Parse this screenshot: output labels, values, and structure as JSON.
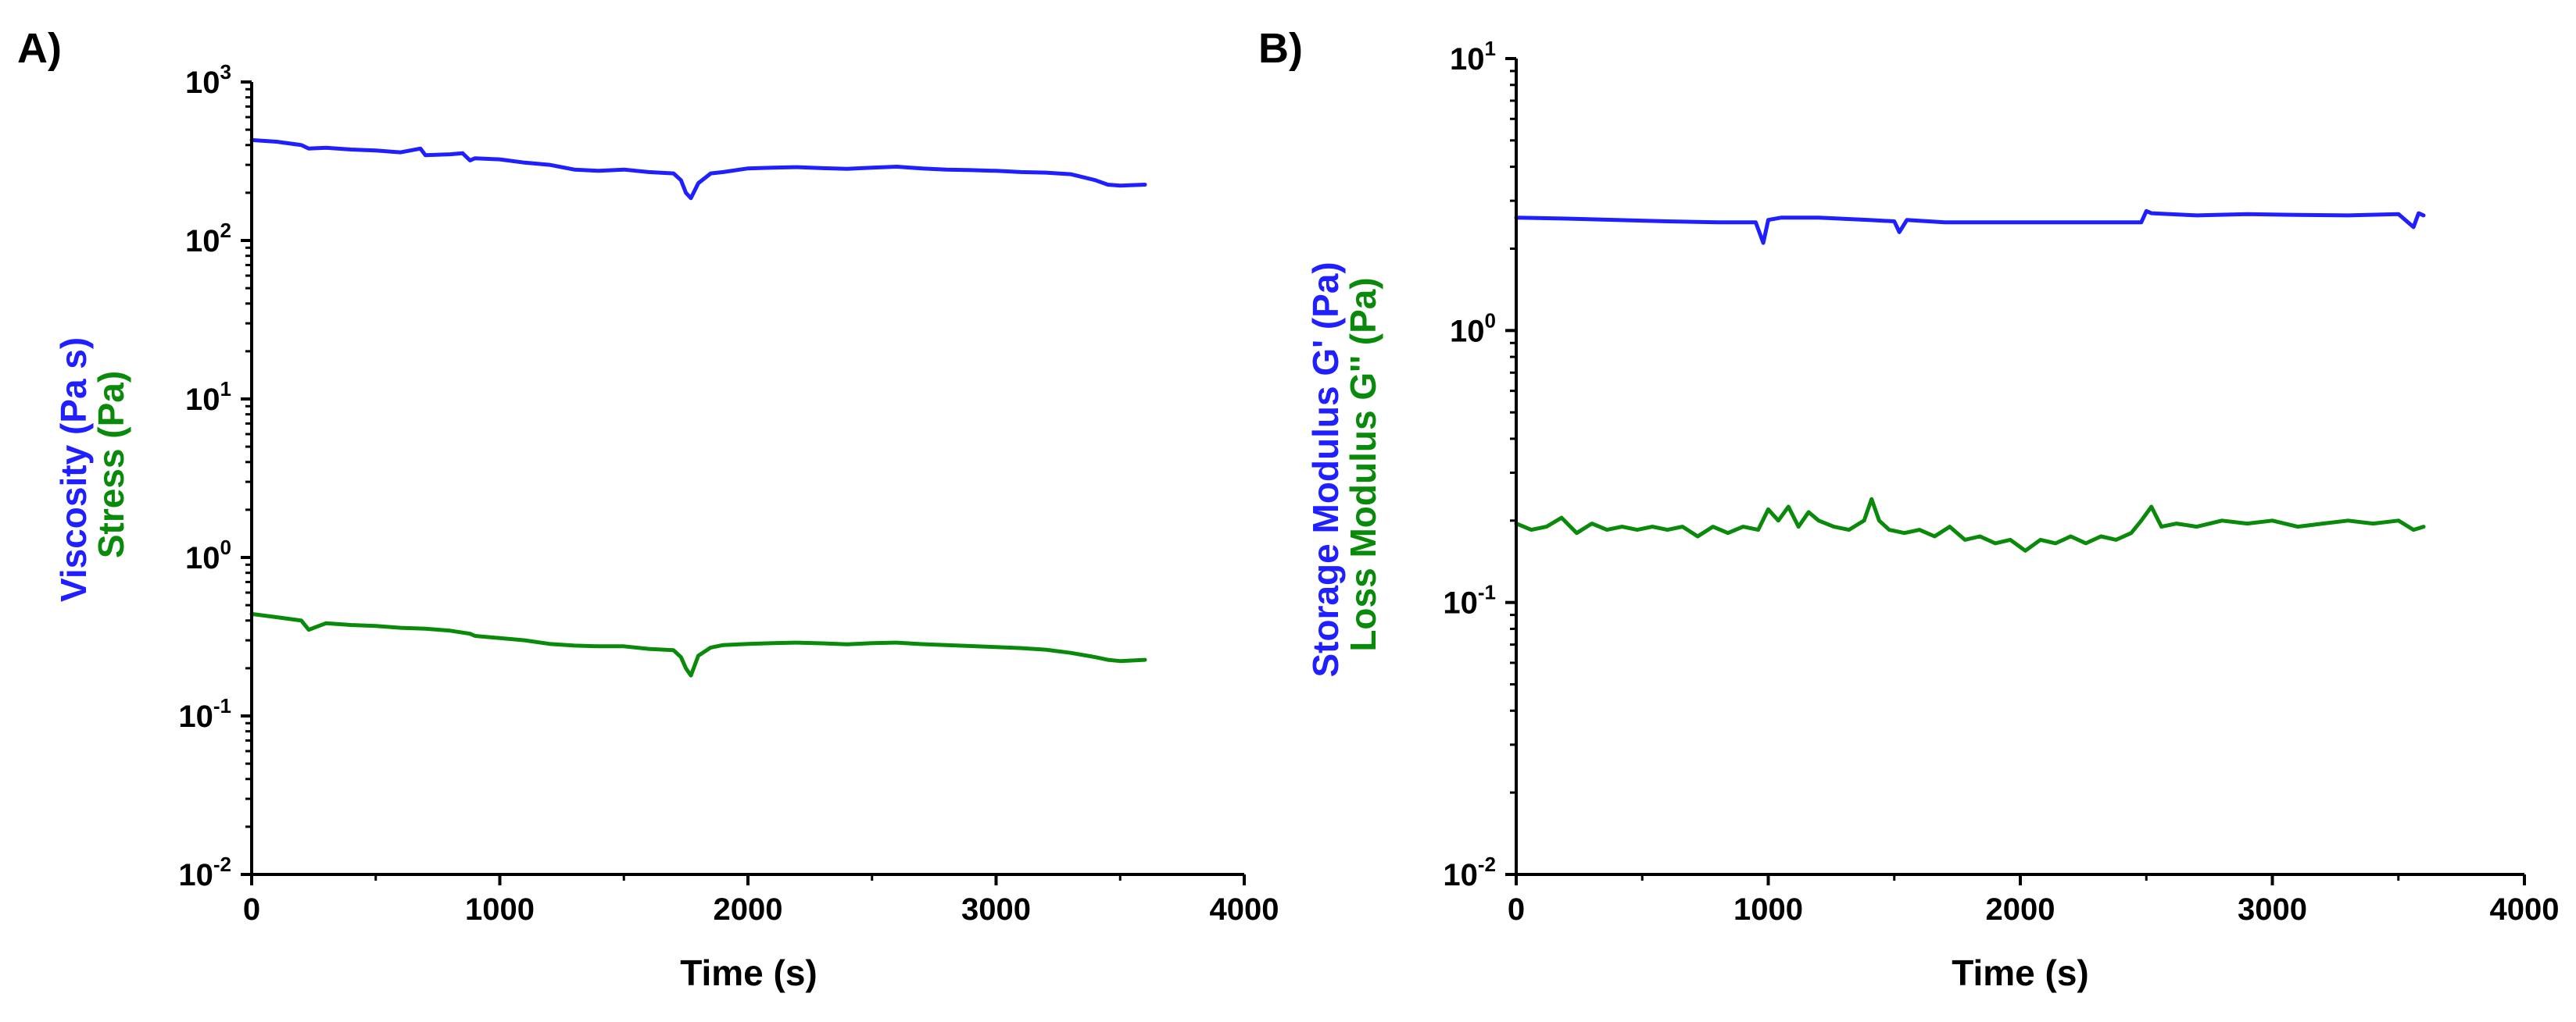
{
  "chart_data": [
    {
      "type": "line",
      "panel_label": "A)",
      "xlabel": "Time (s)",
      "ylabel_parts": [
        {
          "text": "Viscosity (Pa s)",
          "color": "#1f1fff"
        },
        {
          "text": "Stress (Pa)",
          "color": "#0a8a0a"
        }
      ],
      "xlim": [
        0,
        4000
      ],
      "x_ticks": [
        0,
        1000,
        2000,
        3000,
        4000
      ],
      "x_tick_labels": [
        "0",
        "1000",
        "2000",
        "3000",
        "4000"
      ],
      "y_scale": "log",
      "ylim": [
        0.01,
        1000
      ],
      "y_tick_labels": [
        {
          "base": "10",
          "exp": "3"
        },
        {
          "base": "10",
          "exp": "2"
        },
        {
          "base": "10",
          "exp": "1"
        },
        {
          "base": "10",
          "exp": "0"
        },
        {
          "base": "10",
          "exp": "-1"
        },
        {
          "base": "10",
          "exp": "-2"
        }
      ],
      "series": [
        {
          "name": "Viscosity",
          "color": "#1f1fff",
          "x": [
            0,
            100,
            200,
            230,
            300,
            400,
            500,
            600,
            680,
            700,
            800,
            850,
            880,
            900,
            1000,
            1100,
            1200,
            1300,
            1400,
            1500,
            1600,
            1700,
            1730,
            1750,
            1770,
            1800,
            1850,
            1900,
            2000,
            2100,
            2200,
            2300,
            2400,
            2500,
            2600,
            2700,
            2800,
            2900,
            3000,
            3100,
            3200,
            3300,
            3400,
            3450,
            3500,
            3600
          ],
          "values": [
            430,
            420,
            400,
            380,
            385,
            375,
            370,
            360,
            380,
            345,
            350,
            355,
            320,
            330,
            325,
            310,
            300,
            280,
            275,
            280,
            270,
            265,
            240,
            200,
            185,
            230,
            265,
            270,
            285,
            288,
            290,
            286,
            283,
            288,
            292,
            285,
            280,
            278,
            275,
            270,
            268,
            262,
            240,
            225,
            222,
            225
          ]
        },
        {
          "name": "Stress",
          "color": "#0a8a0a",
          "x": [
            0,
            100,
            200,
            230,
            300,
            400,
            500,
            600,
            700,
            800,
            880,
            900,
            1000,
            1100,
            1200,
            1300,
            1400,
            1500,
            1600,
            1700,
            1730,
            1750,
            1770,
            1800,
            1850,
            1900,
            2000,
            2100,
            2200,
            2300,
            2400,
            2500,
            2600,
            2700,
            2800,
            2900,
            3000,
            3100,
            3200,
            3300,
            3400,
            3450,
            3500,
            3600
          ],
          "values": [
            0.44,
            0.42,
            0.4,
            0.35,
            0.385,
            0.375,
            0.37,
            0.36,
            0.355,
            0.345,
            0.33,
            0.32,
            0.31,
            0.3,
            0.285,
            0.278,
            0.275,
            0.275,
            0.265,
            0.26,
            0.235,
            0.2,
            0.18,
            0.24,
            0.27,
            0.28,
            0.285,
            0.288,
            0.29,
            0.287,
            0.283,
            0.288,
            0.29,
            0.284,
            0.28,
            0.276,
            0.272,
            0.268,
            0.262,
            0.25,
            0.235,
            0.226,
            0.222,
            0.226
          ]
        }
      ]
    },
    {
      "type": "line",
      "panel_label": "B)",
      "xlabel": "Time (s)",
      "ylabel_parts": [
        {
          "text": "Storage Modulus G' (Pa)",
          "color": "#1f1fff"
        },
        {
          "text": "Loss Modulus G'' (Pa)",
          "color": "#0a8a0a"
        }
      ],
      "xlim": [
        0,
        4000
      ],
      "x_ticks": [
        0,
        1000,
        2000,
        3000,
        4000
      ],
      "x_tick_labels": [
        "0",
        "1000",
        "2000",
        "3000",
        "4000"
      ],
      "y_scale": "log",
      "ylim": [
        0.01,
        10
      ],
      "y_tick_labels": [
        {
          "base": "10",
          "exp": "1"
        },
        {
          "base": "10",
          "exp": "0"
        },
        {
          "base": "10",
          "exp": "-1"
        },
        {
          "base": "10",
          "exp": "-2"
        }
      ],
      "series": [
        {
          "name": "Storage Modulus G'",
          "color": "#1f1fff",
          "x": [
            0,
            200,
            400,
            600,
            800,
            950,
            980,
            1000,
            1050,
            1200,
            1400,
            1500,
            1520,
            1550,
            1700,
            1900,
            2100,
            2300,
            2480,
            2500,
            2520,
            2700,
            2900,
            3100,
            3300,
            3500,
            3560,
            3580,
            3600
          ],
          "values": [
            2.6,
            2.58,
            2.55,
            2.52,
            2.5,
            2.5,
            2.1,
            2.55,
            2.6,
            2.6,
            2.55,
            2.52,
            2.3,
            2.55,
            2.5,
            2.5,
            2.5,
            2.5,
            2.5,
            2.75,
            2.7,
            2.65,
            2.68,
            2.66,
            2.65,
            2.68,
            2.4,
            2.7,
            2.65
          ]
        },
        {
          "name": "Loss Modulus G''",
          "color": "#0a8a0a",
          "x": [
            0,
            60,
            120,
            180,
            240,
            300,
            360,
            420,
            480,
            540,
            600,
            660,
            720,
            780,
            840,
            900,
            960,
            1000,
            1040,
            1080,
            1120,
            1160,
            1200,
            1260,
            1320,
            1380,
            1410,
            1440,
            1480,
            1540,
            1600,
            1660,
            1720,
            1780,
            1840,
            1900,
            1960,
            2020,
            2080,
            2140,
            2200,
            2260,
            2320,
            2380,
            2440,
            2480,
            2520,
            2560,
            2620,
            2700,
            2800,
            2900,
            3000,
            3100,
            3200,
            3300,
            3400,
            3500,
            3560,
            3600
          ],
          "values": [
            0.195,
            0.185,
            0.19,
            0.205,
            0.18,
            0.195,
            0.185,
            0.19,
            0.185,
            0.19,
            0.185,
            0.19,
            0.175,
            0.19,
            0.18,
            0.19,
            0.185,
            0.22,
            0.2,
            0.225,
            0.19,
            0.215,
            0.2,
            0.19,
            0.185,
            0.2,
            0.24,
            0.2,
            0.185,
            0.18,
            0.185,
            0.175,
            0.19,
            0.17,
            0.175,
            0.165,
            0.17,
            0.155,
            0.17,
            0.165,
            0.175,
            0.165,
            0.175,
            0.17,
            0.18,
            0.2,
            0.225,
            0.19,
            0.195,
            0.19,
            0.2,
            0.195,
            0.2,
            0.19,
            0.195,
            0.2,
            0.195,
            0.2,
            0.185,
            0.19
          ]
        }
      ]
    }
  ]
}
